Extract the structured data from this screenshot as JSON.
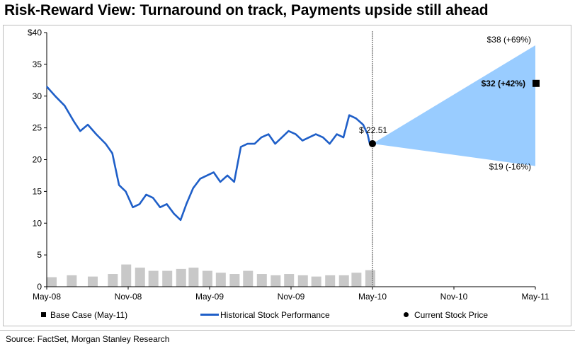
{
  "title": "Risk-Reward View: Turnaround on track, Payments upside still ahead",
  "source": "Source: FactSet, Morgan Stanley Research",
  "legend": {
    "base_case": "Base Case  (May-11)",
    "historical": "Historical Stock Performance",
    "current": "Current Stock Price"
  },
  "colors": {
    "line": "#1f5fc8",
    "cone": "#99ccff",
    "volume": "#c8c8c8",
    "marker": "#000000",
    "divider": "#808080"
  },
  "chart_data": {
    "type": "line",
    "y_ticks": [
      "$40",
      "35",
      "30",
      "25",
      "20",
      "15",
      "10",
      "5",
      "0"
    ],
    "x_ticks": [
      "May-08",
      "Nov-08",
      "May-09",
      "Nov-09",
      "May-10",
      "Nov-10",
      "May-11"
    ],
    "ylim": [
      0,
      40
    ],
    "xlim": [
      "2008-05-01",
      "2011-05-01"
    ],
    "series": [
      {
        "name": "Historical Stock Performance",
        "x": [
          "2008-05-01",
          "2008-05-20",
          "2008-06-10",
          "2008-07-01",
          "2008-07-15",
          "2008-08-01",
          "2008-08-20",
          "2008-09-10",
          "2008-09-25",
          "2008-10-10",
          "2008-10-25",
          "2008-11-10",
          "2008-11-25",
          "2008-12-10",
          "2008-12-25",
          "2009-01-10",
          "2009-01-25",
          "2009-02-10",
          "2009-02-25",
          "2009-03-10",
          "2009-03-25",
          "2009-04-10",
          "2009-04-25",
          "2009-05-10",
          "2009-05-25",
          "2009-06-10",
          "2009-06-25",
          "2009-07-10",
          "2009-07-25",
          "2009-08-10",
          "2009-08-25",
          "2009-09-10",
          "2009-09-25",
          "2009-10-10",
          "2009-10-25",
          "2009-11-10",
          "2009-11-25",
          "2009-12-10",
          "2009-12-25",
          "2010-01-10",
          "2010-01-25",
          "2010-02-10",
          "2010-02-25",
          "2010-03-10",
          "2010-03-25",
          "2010-04-10",
          "2010-04-20",
          "2010-04-25",
          "2010-05-01"
        ],
        "values": [
          31.5,
          30.0,
          28.5,
          26.0,
          24.5,
          25.5,
          24.0,
          22.5,
          21.0,
          16.0,
          15.0,
          12.5,
          13.0,
          14.5,
          14.0,
          12.5,
          13.0,
          11.5,
          10.5,
          13.0,
          15.5,
          17.0,
          17.5,
          18.0,
          16.5,
          17.5,
          16.5,
          22.0,
          22.5,
          22.5,
          23.5,
          24.0,
          22.5,
          23.5,
          24.5,
          24.0,
          23.0,
          23.5,
          24.0,
          23.5,
          22.5,
          24.0,
          23.5,
          27.0,
          26.5,
          25.5,
          24.0,
          22.5,
          22.51
        ]
      }
    ],
    "current_price": {
      "date": "2010-05-01",
      "value": 22.51,
      "label": "$ 22.51"
    },
    "forecast_cone": {
      "start": {
        "date": "2010-05-01",
        "value": 22.51
      },
      "end_date": "2011-05-01",
      "upper": {
        "value": 38,
        "label": "$38 (+69%)"
      },
      "base": {
        "value": 32,
        "label": "$32 (+42%)"
      },
      "lower": {
        "value": 19,
        "label": "$19 (-16%)"
      }
    },
    "volume": {
      "x": [
        "2008-05-01",
        "2008-06-15",
        "2008-08-01",
        "2008-09-15",
        "2008-10-15",
        "2008-11-15",
        "2008-12-15",
        "2009-01-15",
        "2009-02-15",
        "2009-03-15",
        "2009-04-15",
        "2009-05-15",
        "2009-06-15",
        "2009-07-15",
        "2009-08-15",
        "2009-09-15",
        "2009-10-15",
        "2009-11-15",
        "2009-12-15",
        "2010-01-15",
        "2010-02-15",
        "2010-03-15",
        "2010-04-15"
      ],
      "values": [
        1.5,
        1.8,
        1.6,
        2.0,
        3.5,
        3.0,
        2.5,
        2.5,
        2.8,
        3.0,
        2.5,
        2.2,
        2.0,
        2.5,
        2.0,
        1.8,
        2.0,
        1.8,
        1.6,
        1.8,
        1.8,
        2.2,
        2.6
      ]
    }
  }
}
